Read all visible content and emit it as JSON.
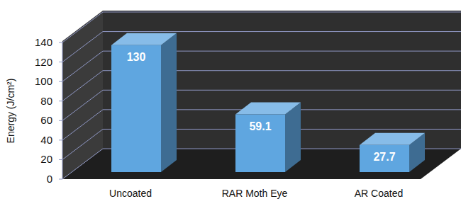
{
  "chart_data": {
    "type": "bar",
    "ylabel": "Energy (J/cm²)",
    "categories": [
      "Uncoated",
      "RAR Moth Eye",
      "AR Coated"
    ],
    "values": [
      130,
      59.1,
      27.7
    ],
    "color": "#5fa6e0",
    "ylim": [
      0,
      140
    ],
    "yticks": [
      0,
      20,
      40,
      60,
      80,
      100,
      120,
      140
    ],
    "grid": true,
    "data_labels": true
  }
}
